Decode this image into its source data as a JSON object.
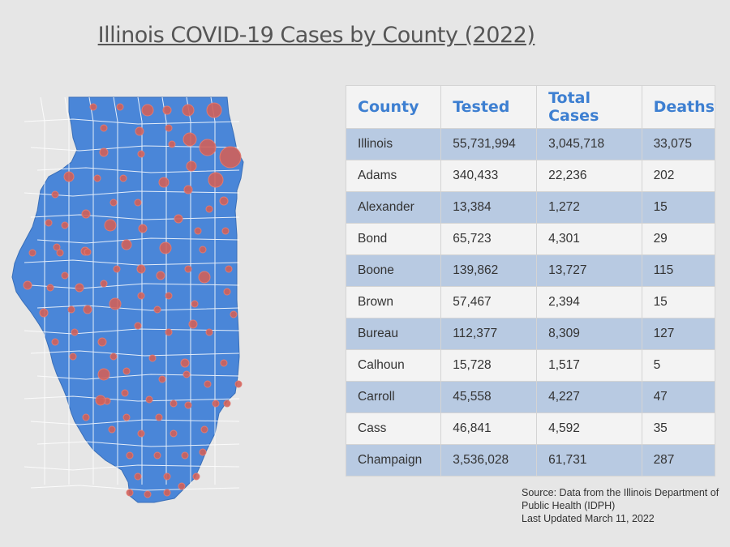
{
  "title": "Illinois COVID-19 Cases by County (2022)",
  "colors": {
    "map_fill": "#4a86d8",
    "county_border": "#ffffff",
    "case_marker": "#d0605a",
    "header_text": "#3d7fd1",
    "row_band": "#b8cae2"
  },
  "chart_data": {
    "type": "table",
    "columns": [
      "County",
      "Tested",
      "Total Cases",
      "Deaths"
    ],
    "rows": [
      [
        "Illinois",
        "55,731,994",
        "3,045,718",
        "33,075"
      ],
      [
        "Adams",
        "340,433",
        "22,236",
        "202"
      ],
      [
        "Alexander",
        "13,384",
        "1,272",
        "15"
      ],
      [
        "Bond",
        "65,723",
        "4,301",
        "29"
      ],
      [
        "Boone",
        "139,862",
        "13,727",
        "115"
      ],
      [
        "Brown",
        "57,467",
        "2,394",
        "15"
      ],
      [
        "Bureau",
        "112,377",
        "8,309",
        "127"
      ],
      [
        "Calhoun",
        "15,728",
        "1,517",
        "5"
      ],
      [
        "Carroll",
        "45,558",
        "4,227",
        "47"
      ],
      [
        "Cass",
        "46,841",
        "4,592",
        "35"
      ],
      [
        "Champaign",
        "3,536,028",
        "61,731",
        "287"
      ]
    ]
  },
  "source": {
    "line1": "Source: Data from the Illinois Department of",
    "line2": "Public Health (IDPH)",
    "line3": "Last Updated March 11, 2022"
  }
}
